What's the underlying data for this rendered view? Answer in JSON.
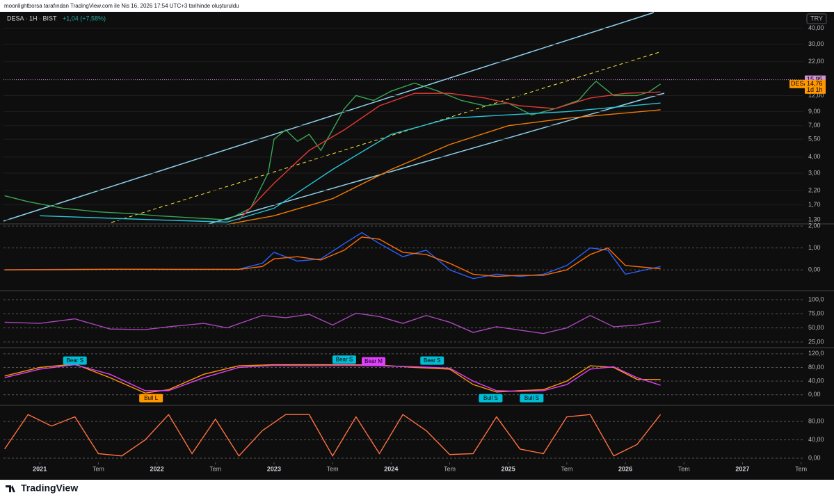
{
  "header": {
    "attribution": "moonlightborsa tarafından TradingView.com ile Nis 16, 2026 17:54 UTC+3 tarihinde oluşturuldu",
    "symbol": "DESA · 1H · BIST",
    "change": "+1,04 (+7,58%)",
    "currency": "TRY",
    "symbol_tag": "DESA",
    "countdown": "1d 1h",
    "footer": "TradingView"
  },
  "chart_data": [
    {
      "type": "line",
      "log": true,
      "xlim": [
        2020.69,
        2027.52
      ],
      "ylim": [
        1.21,
        53
      ],
      "yticks": [
        {
          "value": 40,
          "label": "40,00"
        },
        {
          "value": 30,
          "label": "30,00"
        },
        {
          "value": 22,
          "label": "22,00"
        },
        {
          "value": 12,
          "label": "12,00"
        },
        {
          "value": 9,
          "label": "9,00"
        },
        {
          "value": 7,
          "label": "7,00"
        },
        {
          "value": 5.5,
          "label": "5,50"
        },
        {
          "value": 4,
          "label": "4,00"
        },
        {
          "value": 3,
          "label": "3,00"
        },
        {
          "value": 2.2,
          "label": "2,20"
        },
        {
          "value": 1.7,
          "label": "1,70"
        },
        {
          "value": 1.3,
          "label": "1,30"
        }
      ],
      "price_line": {
        "value": 15.95,
        "label": "15,95"
      },
      "last_price": {
        "value": 14.76,
        "label": "14,76"
      },
      "series": [
        {
          "color": "#3aa655",
          "x": [
            2020.7,
            2020.9,
            2021.2,
            2021.5,
            2021.8,
            2022.0,
            2022.3,
            2022.6,
            2022.8,
            2022.95,
            2023.0,
            2023.1,
            2023.2,
            2023.3,
            2023.4,
            2023.5,
            2023.6,
            2023.7,
            2023.85,
            2024.0,
            2024.2,
            2024.4,
            2024.6,
            2024.8,
            2025.0,
            2025.2,
            2025.4,
            2025.6,
            2025.7,
            2025.75,
            2025.9,
            2026.1,
            2026.2,
            2026.3
          ],
          "values": [
            2.0,
            1.8,
            1.6,
            1.5,
            1.45,
            1.4,
            1.35,
            1.3,
            1.6,
            3.0,
            5.5,
            6.5,
            5.3,
            6.0,
            4.5,
            6.5,
            9.5,
            12,
            11,
            13,
            15,
            13,
            11,
            10,
            10.5,
            8.5,
            9.5,
            11,
            14,
            15.5,
            12,
            12,
            12.8,
            14.76
          ]
        },
        {
          "color": "#e53935",
          "x": [
            2022.7,
            2023.0,
            2023.3,
            2023.6,
            2023.9,
            2024.2,
            2024.5,
            2024.8,
            2025.1,
            2025.4,
            2025.7,
            2026.0,
            2026.3
          ],
          "values": [
            1.3,
            2.5,
            4.5,
            6.5,
            10,
            12.5,
            12.5,
            11.5,
            10,
            9.5,
            11.5,
            12.5,
            12.8
          ]
        },
        {
          "color": "#26c6da",
          "x": [
            2021.0,
            2022.0,
            2022.6,
            2023.0,
            2023.5,
            2024.0,
            2024.5,
            2025.0,
            2025.5,
            2026.3
          ],
          "values": [
            1.4,
            1.3,
            1.25,
            1.6,
            3.2,
            6,
            8,
            8.5,
            9,
            10.5
          ]
        },
        {
          "color": "#f57c00",
          "x": [
            2022.6,
            2023.0,
            2023.5,
            2024.0,
            2024.5,
            2025.0,
            2025.5,
            2026.3
          ],
          "values": [
            1.2,
            1.4,
            1.9,
            3.2,
            5,
            7,
            8,
            9.3
          ]
        }
      ]
    },
    {
      "type": "line",
      "xlim": [
        2020.69,
        2027.52
      ],
      "ylim": [
        -0.95,
        2.1
      ],
      "yticks": [
        {
          "value": 2,
          "label": "2,00"
        },
        {
          "value": 1,
          "label": "1,00"
        },
        {
          "value": 0,
          "label": "0,00"
        }
      ],
      "series": [
        {
          "color": "#2962ff",
          "x": [
            2020.7,
            2021.2,
            2021.7,
            2022.2,
            2022.7,
            2022.9,
            2023.0,
            2023.2,
            2023.4,
            2023.6,
            2023.75,
            2023.9,
            2024.1,
            2024.3,
            2024.5,
            2024.7,
            2024.9,
            2025.1,
            2025.3,
            2025.5,
            2025.7,
            2025.85,
            2026.0,
            2026.3
          ],
          "values": [
            0,
            0.02,
            0.03,
            0.02,
            0.03,
            0.3,
            0.8,
            0.4,
            0.5,
            1.2,
            1.7,
            1.2,
            0.6,
            0.9,
            0,
            -0.4,
            -0.2,
            -0.3,
            -0.2,
            0.2,
            1.0,
            0.9,
            -0.2,
            0.15
          ]
        },
        {
          "color": "#ff6d00",
          "x": [
            2020.7,
            2021.2,
            2021.7,
            2022.2,
            2022.7,
            2022.9,
            2023.0,
            2023.2,
            2023.4,
            2023.6,
            2023.75,
            2023.9,
            2024.1,
            2024.3,
            2024.5,
            2024.7,
            2024.9,
            2025.1,
            2025.3,
            2025.5,
            2025.7,
            2025.85,
            2026.0,
            2026.3
          ],
          "values": [
            0,
            0.01,
            0.03,
            0.02,
            0.02,
            0.15,
            0.5,
            0.6,
            0.45,
            0.9,
            1.5,
            1.4,
            0.8,
            0.7,
            0.3,
            -0.2,
            -0.3,
            -0.25,
            -0.25,
            0.0,
            0.7,
            1.0,
            0.2,
            0.05
          ]
        }
      ]
    },
    {
      "type": "line",
      "xlim": [
        2020.69,
        2027.52
      ],
      "ylim": [
        15,
        116
      ],
      "yticks": [
        {
          "value": 100,
          "label": "100,0"
        },
        {
          "value": 75,
          "label": "75,00"
        },
        {
          "value": 50,
          "label": "50,00"
        },
        {
          "value": 25,
          "label": "25,00"
        }
      ],
      "series": [
        {
          "color": "#ab47bc",
          "x": [
            2020.7,
            2021.0,
            2021.3,
            2021.6,
            2021.9,
            2022.1,
            2022.4,
            2022.6,
            2022.9,
            2023.1,
            2023.3,
            2023.5,
            2023.7,
            2023.9,
            2024.1,
            2024.3,
            2024.5,
            2024.7,
            2024.9,
            2025.1,
            2025.3,
            2025.5,
            2025.7,
            2025.9,
            2026.1,
            2026.3
          ],
          "values": [
            60,
            58,
            66,
            48,
            47,
            52,
            58,
            50,
            72,
            68,
            74,
            55,
            76,
            70,
            58,
            72,
            60,
            42,
            52,
            46,
            40,
            50,
            72,
            52,
            55,
            62
          ]
        }
      ]
    },
    {
      "type": "line",
      "xlim": [
        2020.69,
        2027.52
      ],
      "ylim": [
        -31,
        138
      ],
      "yticks": [
        {
          "value": 120,
          "label": "120,0"
        },
        {
          "value": 80,
          "label": "80,00"
        },
        {
          "value": 40,
          "label": "40,00"
        },
        {
          "value": 0,
          "label": "0,00"
        }
      ],
      "series": [
        {
          "color": "#ff9800",
          "x": [
            2020.7,
            2021.0,
            2021.3,
            2021.6,
            2021.9,
            2022.1,
            2022.4,
            2022.7,
            2023.0,
            2023.3,
            2023.6,
            2023.9,
            2024.2,
            2024.5,
            2024.7,
            2024.9,
            2025.1,
            2025.3,
            2025.5,
            2025.7,
            2025.9,
            2026.1,
            2026.3
          ],
          "values": [
            55,
            80,
            90,
            50,
            5,
            15,
            60,
            85,
            88,
            88,
            88,
            87,
            80,
            75,
            30,
            8,
            12,
            15,
            40,
            85,
            80,
            45,
            45
          ]
        },
        {
          "color": "#e040fb",
          "x": [
            2020.7,
            2021.0,
            2021.3,
            2021.6,
            2021.9,
            2022.1,
            2022.4,
            2022.7,
            2023.0,
            2023.3,
            2023.6,
            2023.9,
            2024.2,
            2024.5,
            2024.7,
            2024.9,
            2025.1,
            2025.3,
            2025.5,
            2025.7,
            2025.9,
            2026.1,
            2026.3
          ],
          "values": [
            50,
            75,
            88,
            60,
            12,
            12,
            50,
            80,
            86,
            85,
            86,
            85,
            82,
            78,
            40,
            12,
            10,
            12,
            30,
            75,
            82,
            50,
            28
          ]
        }
      ],
      "annotations": [
        {
          "text": "Bear S",
          "x": 2021.3,
          "y": 100,
          "color": "#00bcd4"
        },
        {
          "text": "Bull L",
          "x": 2021.95,
          "y": -10,
          "color": "#ff9800"
        },
        {
          "text": "Bear S",
          "x": 2023.6,
          "y": 103,
          "color": "#00bcd4"
        },
        {
          "text": "Bear M",
          "x": 2023.85,
          "y": 98,
          "color": "#e040fb"
        },
        {
          "text": "Bear S",
          "x": 2024.35,
          "y": 100,
          "color": "#00bcd4"
        },
        {
          "text": "Bull S",
          "x": 2024.85,
          "y": -10,
          "color": "#00bcd4"
        },
        {
          "text": "Bull S",
          "x": 2025.2,
          "y": -10,
          "color": "#00bcd4"
        }
      ]
    },
    {
      "type": "line",
      "xlim": [
        2020.69,
        2027.52
      ],
      "ylim": [
        -9,
        115
      ],
      "yticks": [
        {
          "value": 80,
          "label": "80,00"
        },
        {
          "value": 40,
          "label": "40,00"
        },
        {
          "value": 0,
          "label": "0,00"
        }
      ],
      "xticks": [
        2021,
        {
          "value": 2021.5,
          "label": "Tem"
        },
        2022,
        {
          "value": 2022.5,
          "label": "Tem"
        },
        2023,
        {
          "value": 2023.5,
          "label": "Tem"
        },
        2024,
        {
          "value": 2024.5,
          "label": "Tem"
        },
        2025,
        {
          "value": 2025.5,
          "label": "Tem"
        },
        2026,
        {
          "value": 2026.5,
          "label": "Tem"
        },
        2027,
        {
          "value": 2027.5,
          "label": "Tem"
        }
      ],
      "series": [
        {
          "color": "#ff7043",
          "x": [
            2020.7,
            2020.9,
            2021.1,
            2021.3,
            2021.5,
            2021.7,
            2021.9,
            2022.1,
            2022.3,
            2022.5,
            2022.7,
            2022.9,
            2023.1,
            2023.3,
            2023.5,
            2023.7,
            2023.9,
            2024.1,
            2024.3,
            2024.5,
            2024.7,
            2024.9,
            2025.1,
            2025.3,
            2025.5,
            2025.7,
            2025.9,
            2026.1,
            2026.3
          ],
          "values": [
            20,
            95,
            70,
            90,
            10,
            5,
            40,
            95,
            10,
            85,
            5,
            60,
            95,
            95,
            5,
            90,
            10,
            95,
            60,
            8,
            10,
            90,
            20,
            10,
            90,
            95,
            5,
            30,
            95
          ]
        }
      ]
    }
  ]
}
